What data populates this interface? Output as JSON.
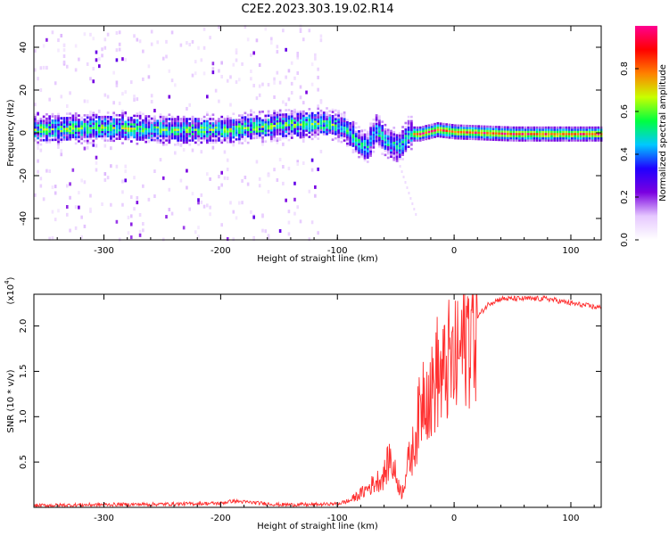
{
  "title": "C2E2.2023.303.19.02.R14",
  "chart_data": [
    {
      "type": "heatmap",
      "name": "spectrogram",
      "xlabel": "Height of straight line (km)",
      "ylabel": "Frequency (Hz)",
      "xlim": [
        -360,
        126
      ],
      "ylim": [
        -50,
        50
      ],
      "x_ticks": [
        "-300",
        "-200",
        "-100",
        "0",
        "100"
      ],
      "y_ticks": [
        "-40",
        "-20",
        "0",
        "20",
        "40"
      ],
      "colorbar": {
        "label": "Normalized spectral amplitude",
        "range": [
          0,
          1
        ],
        "ticks": [
          "0.0",
          "0.2",
          "0.4",
          "0.6",
          "0.8"
        ],
        "colors": [
          "#ffffff",
          "#e6c8ff",
          "#7a00e0",
          "#2000ff",
          "#00c8ff",
          "#00ff40",
          "#c8ff00",
          "#ff8000",
          "#ff0000",
          "#ff0090"
        ]
      },
      "signal_centerline": [
        {
          "x": -360,
          "y": 2
        },
        {
          "x": -300,
          "y": 3
        },
        {
          "x": -250,
          "y": 2
        },
        {
          "x": -200,
          "y": 2
        },
        {
          "x": -150,
          "y": 4
        },
        {
          "x": -110,
          "y": 5
        },
        {
          "x": -95,
          "y": 3
        },
        {
          "x": -85,
          "y": -3
        },
        {
          "x": -75,
          "y": -6
        },
        {
          "x": -68,
          "y": 2
        },
        {
          "x": -58,
          "y": -4
        },
        {
          "x": -48,
          "y": -6
        },
        {
          "x": -40,
          "y": 0
        },
        {
          "x": -30,
          "y": 0
        },
        {
          "x": -15,
          "y": 2
        },
        {
          "x": 0,
          "y": 1
        },
        {
          "x": 50,
          "y": 0
        },
        {
          "x": 126,
          "y": 0
        }
      ],
      "grid": false
    },
    {
      "type": "line",
      "name": "snr",
      "xlabel": "Height of straight line (km)",
      "ylabel": "SNR (10 * v/v)",
      "y_multiplier": "(x10",
      "y_multiplier_exp": "4",
      "xlim": [
        -360,
        126
      ],
      "ylim": [
        0,
        23500
      ],
      "x_ticks": [
        "-300",
        "-200",
        "-100",
        "0",
        "100"
      ],
      "y_ticks": [
        "0.5",
        "1.0",
        "1.5",
        "2.0"
      ],
      "series": [
        {
          "color": "#ff3030",
          "x": [
            -360,
            -300,
            -250,
            -200,
            -190,
            -150,
            -120,
            -100,
            -90,
            -80,
            -70,
            -60,
            -55,
            -50,
            -45,
            -40,
            -35,
            -30,
            -25,
            -20,
            -15,
            -10,
            -5,
            0,
            5,
            10,
            20,
            30,
            40,
            60,
            80,
            100,
            126
          ],
          "y": [
            200,
            300,
            350,
            450,
            700,
            300,
            300,
            400,
            700,
            1500,
            2500,
            3500,
            5500,
            3500,
            1500,
            4500,
            6500,
            10000,
            14000,
            12000,
            15000,
            14000,
            16000,
            15500,
            17000,
            19000,
            21000,
            22500,
            23000,
            23000,
            23000,
            22500,
            22000
          ]
        }
      ],
      "grid": false
    }
  ]
}
